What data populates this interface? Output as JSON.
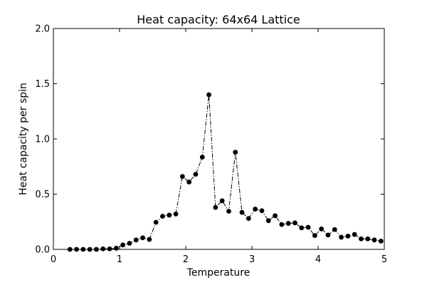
{
  "chart_data": {
    "type": "line",
    "title": "Heat capacity: 64x64 Lattice",
    "xlabel": "Temperature",
    "ylabel": "Heat capacity per spin",
    "xlim": [
      0,
      5
    ],
    "ylim": [
      0,
      2.0
    ],
    "xticks": [
      0,
      1,
      2,
      3,
      4,
      5
    ],
    "xtick_labels": [
      "0",
      "1",
      "2",
      "3",
      "4",
      "5"
    ],
    "yticks": [
      0.0,
      0.5,
      1.0,
      1.5,
      2.0
    ],
    "ytick_labels": [
      "0.0",
      "0.5",
      "1.0",
      "1.5",
      "2.0"
    ],
    "grid": false,
    "line_style": "dash-dot",
    "marker": "circle",
    "color": "#000000",
    "series": [
      {
        "x": [
          0.25,
          0.35,
          0.45,
          0.55,
          0.65,
          0.75,
          0.85,
          0.95,
          1.05,
          1.15,
          1.25,
          1.35,
          1.45,
          1.55,
          1.65,
          1.75,
          1.85,
          1.95,
          2.05,
          2.15,
          2.25,
          2.35,
          2.45,
          2.55,
          2.65,
          2.75,
          2.85,
          2.95,
          3.05,
          3.15,
          3.25,
          3.35,
          3.45,
          3.55,
          3.65,
          3.75,
          3.85,
          3.95,
          4.05,
          4.15,
          4.25,
          4.35,
          4.45,
          4.55,
          4.65,
          4.75,
          4.85,
          4.95
        ],
        "y": [
          0.0,
          0.0,
          0.0,
          0.0,
          0.0,
          0.005,
          0.005,
          0.01,
          0.04,
          0.055,
          0.085,
          0.105,
          0.09,
          0.245,
          0.3,
          0.31,
          0.32,
          0.66,
          0.61,
          0.68,
          0.835,
          1.4,
          0.38,
          0.44,
          0.345,
          0.88,
          0.335,
          0.28,
          0.365,
          0.35,
          0.26,
          0.305,
          0.225,
          0.235,
          0.24,
          0.195,
          0.2,
          0.125,
          0.185,
          0.13,
          0.18,
          0.11,
          0.12,
          0.135,
          0.095,
          0.095,
          0.085,
          0.075
        ]
      }
    ]
  }
}
